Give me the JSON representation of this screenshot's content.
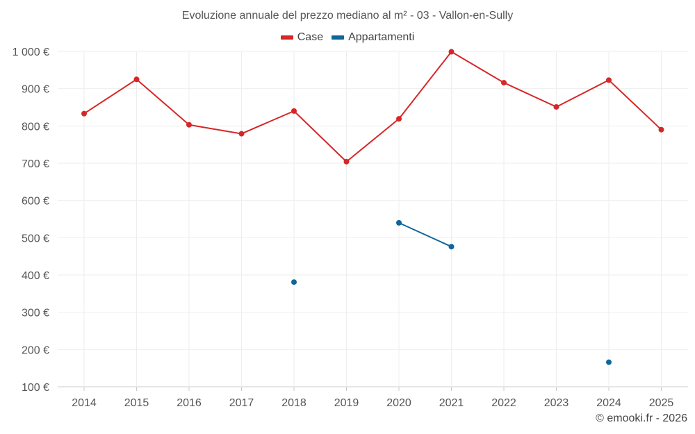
{
  "chart_data": {
    "type": "line",
    "title": "Evoluzione annuale del prezzo mediano al m² - 03 - Vallon-en-Sully",
    "xlabel": "",
    "ylabel": "",
    "categories": [
      "2014",
      "2015",
      "2016",
      "2017",
      "2018",
      "2019",
      "2020",
      "2021",
      "2022",
      "2023",
      "2024",
      "2025"
    ],
    "ylim": [
      100,
      1000
    ],
    "yticks": [
      100,
      200,
      300,
      400,
      500,
      600,
      700,
      800,
      900,
      1000
    ],
    "ytick_labels": [
      "100 €",
      "200 €",
      "300 €",
      "400 €",
      "500 €",
      "600 €",
      "700 €",
      "800 €",
      "900 €",
      "1 000 €"
    ],
    "grid": true,
    "legend_position": "top-center",
    "series": [
      {
        "name": "Case",
        "color": "#d62728",
        "values": [
          833,
          925,
          803,
          779,
          840,
          704,
          819,
          999,
          916,
          851,
          923,
          790
        ]
      },
      {
        "name": "Appartamenti",
        "color": "#0e6699",
        "values": [
          null,
          null,
          null,
          null,
          381,
          null,
          540,
          476,
          null,
          null,
          166,
          null
        ]
      }
    ]
  },
  "credit": "© emooki.fr - 2026"
}
